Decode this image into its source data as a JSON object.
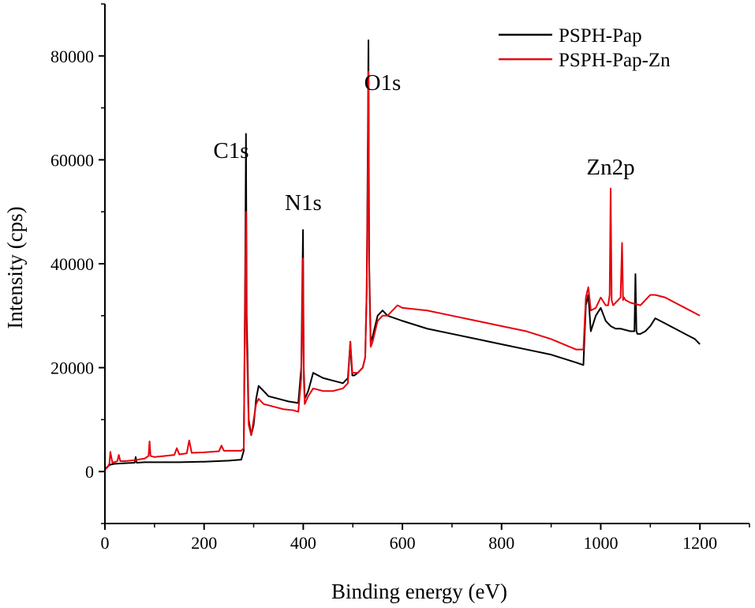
{
  "chart_data": {
    "type": "line",
    "title": "",
    "xlabel": "Binding energy (eV)",
    "ylabel": "Intensity (cps)",
    "xlim": [
      0,
      1300
    ],
    "ylim": [
      -10000,
      90000
    ],
    "xticks": [
      0,
      200,
      400,
      600,
      800,
      1000,
      1200
    ],
    "xtick_labels": [
      "0",
      "200",
      "400",
      "600",
      "800",
      "1000",
      "1200"
    ],
    "yticks": [
      0,
      20000,
      40000,
      60000,
      80000
    ],
    "ytick_labels": [
      "0",
      "20000",
      "40000",
      "60000",
      "80000"
    ],
    "grid": false,
    "legend_position": "top-right",
    "annotations": [
      {
        "text": "C1s",
        "x": 280
      },
      {
        "text": "N1s",
        "x": 400
      },
      {
        "text": "O1s",
        "x": 560
      },
      {
        "text": "Zn2p",
        "x": 1020
      }
    ],
    "series": [
      {
        "name": "PSPH-Pap",
        "color": "#000000",
        "x": [
          0,
          5,
          10,
          20,
          40,
          60,
          62,
          64,
          80,
          100,
          150,
          200,
          250,
          275,
          280,
          283,
          284.5,
          286,
          290,
          295,
          300,
          305,
          310,
          320,
          330,
          350,
          370,
          390,
          396,
          398,
          399.5,
          401,
          403,
          410,
          420,
          440,
          460,
          480,
          490,
          495,
          497,
          499,
          503,
          510,
          520,
          525,
          528,
          530,
          531.5,
          533,
          536,
          540,
          550,
          560,
          570,
          600,
          650,
          700,
          750,
          800,
          850,
          900,
          950,
          965,
          970,
          975,
          980,
          990,
          1000,
          1010,
          1020,
          1030,
          1040,
          1060,
          1068,
          1070,
          1072,
          1074,
          1080,
          1090,
          1100,
          1110,
          1130,
          1150,
          1170,
          1190,
          1200
        ],
        "y": [
          500,
          900,
          1300,
          1500,
          1600,
          1700,
          2800,
          1700,
          1800,
          1800,
          1800,
          1900,
          2100,
          2300,
          4000,
          40000,
          65000,
          30000,
          10000,
          7000,
          9000,
          14000,
          16500,
          15500,
          14500,
          14000,
          13500,
          13200,
          20000,
          35000,
          46500,
          20000,
          14000,
          15500,
          19000,
          18000,
          17500,
          17000,
          18000,
          25000,
          21000,
          18500,
          18500,
          19000,
          20000,
          22000,
          35000,
          60000,
          83000,
          40000,
          25000,
          26000,
          30000,
          31000,
          30000,
          29000,
          27500,
          26500,
          25500,
          24500,
          23500,
          22500,
          21000,
          20500,
          32000,
          34000,
          27000,
          30000,
          31500,
          29000,
          28000,
          27500,
          27500,
          27000,
          27000,
          38000,
          27000,
          26500,
          26500,
          27000,
          28000,
          29500,
          28500,
          27500,
          26500,
          25500,
          24500
        ]
      },
      {
        "name": "PSPH-Pap-Zn",
        "color": "#e8000b",
        "x": [
          0,
          5,
          9,
          11,
          15,
          25,
          28,
          31,
          40,
          60,
          80,
          88,
          90,
          92,
          100,
          120,
          140,
          145,
          150,
          165,
          170,
          175,
          200,
          230,
          235,
          240,
          260,
          275,
          280,
          283,
          284.5,
          286,
          290,
          295,
          300,
          305,
          310,
          320,
          340,
          360,
          380,
          390,
          396,
          398,
          399.5,
          401,
          403,
          410,
          420,
          440,
          460,
          480,
          490,
          495,
          497,
          499,
          503,
          510,
          520,
          525,
          528,
          530,
          531.5,
          533,
          536,
          540,
          550,
          560,
          570,
          580,
          590,
          600,
          650,
          700,
          750,
          800,
          850,
          900,
          950,
          965,
          970,
          975,
          980,
          990,
          1000,
          1010,
          1015,
          1018,
          1020,
          1022,
          1025,
          1030,
          1040,
          1043,
          1045,
          1047,
          1050,
          1060,
          1080,
          1100,
          1110,
          1130,
          1150,
          1170,
          1190,
          1200
        ],
        "y": [
          400,
          800,
          1500,
          3800,
          1700,
          2000,
          3200,
          2000,
          2000,
          2200,
          2500,
          3000,
          5800,
          3000,
          2800,
          3000,
          3200,
          4500,
          3300,
          3500,
          6000,
          3600,
          3700,
          3900,
          5000,
          4000,
          4000,
          4000,
          4500,
          35000,
          50000,
          25000,
          9000,
          7000,
          10000,
          13000,
          14000,
          13000,
          12500,
          12000,
          11800,
          11500,
          18000,
          30000,
          41000,
          18000,
          13000,
          14500,
          16000,
          15500,
          15500,
          16000,
          17000,
          25000,
          22000,
          19000,
          19000,
          19000,
          20000,
          22000,
          35000,
          55000,
          77000,
          38000,
          24000,
          25000,
          29000,
          30000,
          30000,
          31000,
          32000,
          31500,
          31000,
          30000,
          29000,
          28000,
          27000,
          25500,
          23500,
          23500,
          33500,
          35500,
          31000,
          31500,
          33500,
          32000,
          32000,
          34000,
          54500,
          33000,
          32000,
          32500,
          33500,
          44000,
          33000,
          33500,
          33000,
          32500,
          32000,
          34000,
          34000,
          33500,
          32500,
          31500,
          30500,
          30000
        ]
      }
    ]
  }
}
